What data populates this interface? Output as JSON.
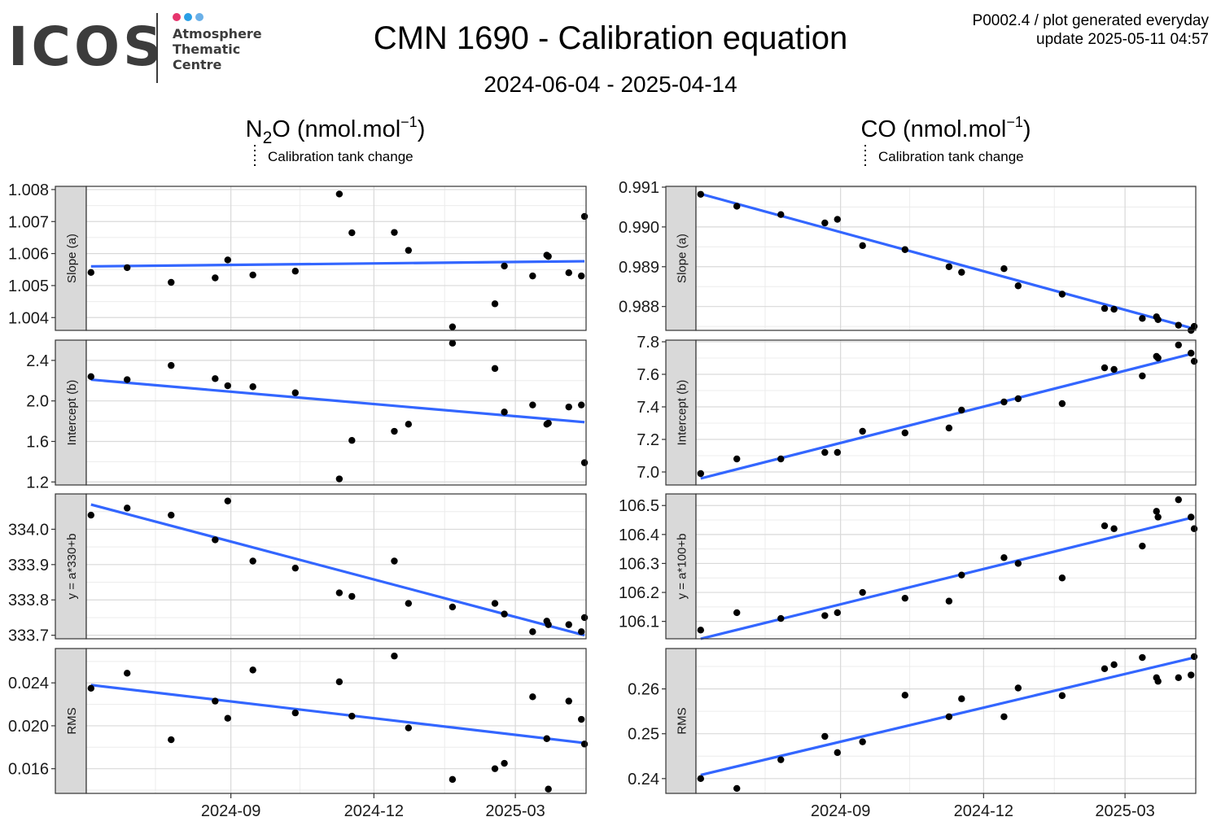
{
  "header": {
    "logo_text": "ICOS",
    "logo_sub": [
      "Atmosphere",
      "Thematic",
      "Centre"
    ],
    "logo_dot_colors": [
      "#e6356d",
      "#2a9fe6",
      "#6ab0e8"
    ],
    "title": "CMN 1690 - Calibration equation",
    "subtitle": "2024-06-04 - 2025-04-14",
    "plot_id": "P0002.4 / plot generated everyday",
    "update": "update  2025-05-11 04:57"
  },
  "colors": {
    "fit_line": "#3366ff",
    "point": "#000000",
    "strip": "#d9d9d9",
    "grid_major": "#d9d9d9",
    "grid_minor": "#ececec"
  },
  "legend": {
    "label": "Calibration tank change",
    "style": "dotted"
  },
  "chart_data": [
    {
      "type": "scatter",
      "title_base": "N",
      "title_sub": "2",
      "title_rest": "O (nmol.mol",
      "title_sup": "−1",
      "title_end": ")",
      "x_ticks": [
        "2024-09",
        "2024-12",
        "2025-03"
      ],
      "x_tick_dates": [
        "2024-09-01",
        "2024-12-01",
        "2025-03-01"
      ],
      "xlim": [
        "2024-06-01",
        "2025-04-15"
      ],
      "x": [
        "2024-06-04",
        "2024-06-27",
        "2024-07-25",
        "2024-08-22",
        "2024-08-30",
        "2024-09-15",
        "2024-10-12",
        "2024-11-09",
        "2024-11-17",
        "2024-12-14",
        "2024-12-23",
        "2025-01-20",
        "2025-02-16",
        "2025-02-22",
        "2025-03-12",
        "2025-03-21",
        "2025-03-22",
        "2025-04-04",
        "2025-04-12",
        "2025-04-14"
      ],
      "fit_range": [
        "2024-06-04",
        "2025-04-14"
      ],
      "panels": [
        {
          "strip": "Slope (a)",
          "ylim": [
            1.0036,
            1.0081
          ],
          "y_ticks": [
            1.004,
            1.005,
            1.006,
            1.007,
            1.008
          ],
          "y_tick_labels": [
            "1.004",
            "1.005",
            "1.006",
            "1.007",
            "1.008"
          ],
          "y": [
            1.00541,
            1.00556,
            1.0051,
            1.00524,
            1.0058,
            1.00533,
            1.00545,
            1.00786,
            1.00665,
            1.00666,
            1.0061,
            1.00371,
            1.00443,
            1.00561,
            1.0053,
            1.00595,
            1.00591,
            1.0054,
            1.0053,
            1.00716
          ],
          "fit": [
            1.0056,
            1.00576
          ]
        },
        {
          "strip": "Intercept (b)",
          "ylim": [
            1.17,
            2.6
          ],
          "y_ticks": [
            1.2,
            1.6,
            2.0,
            2.4
          ],
          "y_tick_labels": [
            "1.2",
            "1.6",
            "2.0",
            "2.4"
          ],
          "y": [
            2.24,
            2.21,
            2.35,
            2.22,
            2.15,
            2.14,
            2.08,
            1.23,
            1.61,
            1.7,
            1.77,
            2.57,
            2.32,
            1.89,
            1.96,
            1.77,
            1.78,
            1.94,
            1.96,
            1.39
          ],
          "fit": [
            2.21,
            1.79
          ]
        },
        {
          "strip": "y = a*330+b",
          "ylim": [
            333.69,
            334.1
          ],
          "y_ticks": [
            333.7,
            333.8,
            333.9,
            334.0
          ],
          "y_tick_labels": [
            "333.7",
            "333.8",
            "333.9",
            "334.0"
          ],
          "y": [
            334.04,
            334.06,
            334.04,
            333.97,
            334.08,
            333.91,
            333.89,
            333.82,
            333.81,
            333.91,
            333.79,
            333.78,
            333.79,
            333.76,
            333.71,
            333.74,
            333.73,
            333.73,
            333.71,
            333.75
          ],
          "fit": [
            334.07,
            333.7
          ]
        },
        {
          "strip": "RMS",
          "ylim": [
            0.0137,
            0.0272
          ],
          "y_ticks": [
            0.016,
            0.02,
            0.024
          ],
          "y_tick_labels": [
            "0.016",
            "0.020",
            "0.024"
          ],
          "y": [
            0.0235,
            0.0249,
            0.0187,
            0.0223,
            0.0207,
            0.0252,
            0.0212,
            0.0241,
            0.0209,
            0.0265,
            0.0198,
            0.015,
            0.016,
            0.0165,
            0.0227,
            0.0188,
            0.0141,
            0.0223,
            0.0206,
            0.0183
          ],
          "fit": [
            0.0238,
            0.0184
          ]
        }
      ]
    },
    {
      "type": "scatter",
      "title_base": "CO (nmol.mol",
      "title_sub": "",
      "title_rest": "",
      "title_sup": "−1",
      "title_end": ")",
      "x_ticks": [
        "2024-09",
        "2024-12",
        "2025-03"
      ],
      "x_tick_dates": [
        "2024-09-01",
        "2024-12-01",
        "2025-03-01"
      ],
      "xlim": [
        "2024-06-01",
        "2025-04-15"
      ],
      "x": [
        "2024-06-04",
        "2024-06-27",
        "2024-07-25",
        "2024-08-22",
        "2024-08-30",
        "2024-09-15",
        "2024-10-12",
        "2024-11-09",
        "2024-11-17",
        "2024-12-14",
        "2024-12-23",
        "2025-01-20",
        "2025-02-16",
        "2025-02-22",
        "2025-03-12",
        "2025-03-21",
        "2025-03-22",
        "2025-04-04",
        "2025-04-12",
        "2025-04-14"
      ],
      "fit_range": [
        "2024-06-04",
        "2025-04-14"
      ],
      "panels": [
        {
          "strip": "Slope (a)",
          "ylim": [
            0.9874,
            0.99102
          ],
          "y_ticks": [
            0.988,
            0.989,
            0.99,
            0.991
          ],
          "y_tick_labels": [
            "0.988",
            "0.989",
            "0.990",
            "0.991"
          ],
          "y": [
            0.99082,
            0.99052,
            0.99031,
            0.9901,
            0.99019,
            0.98953,
            0.98943,
            0.989,
            0.98886,
            0.98895,
            0.98852,
            0.98831,
            0.98795,
            0.98793,
            0.9877,
            0.98774,
            0.98767,
            0.98753,
            0.9874,
            0.9875
          ],
          "fit": [
            0.99083,
            0.98744
          ]
        },
        {
          "strip": "Intercept (b)",
          "ylim": [
            6.92,
            7.81
          ],
          "y_ticks": [
            7.0,
            7.2,
            7.4,
            7.6,
            7.8
          ],
          "y_tick_labels": [
            "7.0",
            "7.2",
            "7.4",
            "7.6",
            "7.8"
          ],
          "y": [
            6.99,
            7.08,
            7.08,
            7.12,
            7.12,
            7.25,
            7.24,
            7.27,
            7.38,
            7.43,
            7.45,
            7.42,
            7.64,
            7.63,
            7.59,
            7.71,
            7.7,
            7.78,
            7.73,
            7.68
          ],
          "fit": [
            6.96,
            7.73
          ]
        },
        {
          "strip": "y = a*100+b",
          "ylim": [
            106.04,
            106.54
          ],
          "y_ticks": [
            106.1,
            106.2,
            106.3,
            106.4,
            106.5
          ],
          "y_tick_labels": [
            "106.1",
            "106.2",
            "106.3",
            "106.4",
            "106.5"
          ],
          "y": [
            106.07,
            106.13,
            106.11,
            106.12,
            106.13,
            106.2,
            106.18,
            106.17,
            106.26,
            106.32,
            106.3,
            106.25,
            106.43,
            106.42,
            106.36,
            106.48,
            106.46,
            106.52,
            106.46,
            106.42
          ],
          "fit": [
            106.04,
            106.46
          ]
        },
        {
          "strip": "RMS",
          "ylim": [
            0.2367,
            0.269
          ],
          "y_ticks": [
            0.24,
            0.25,
            0.26
          ],
          "y_tick_labels": [
            "0.24",
            "0.25",
            "0.26"
          ],
          "y": [
            0.24,
            0.2378,
            0.2442,
            0.2494,
            0.2458,
            0.2482,
            0.2586,
            0.2538,
            0.2578,
            0.2538,
            0.2602,
            0.2585,
            0.2645,
            0.2654,
            0.267,
            0.2625,
            0.2617,
            0.2625,
            0.2631,
            0.2672
          ],
          "fit": [
            0.2408,
            0.267
          ]
        }
      ]
    }
  ]
}
